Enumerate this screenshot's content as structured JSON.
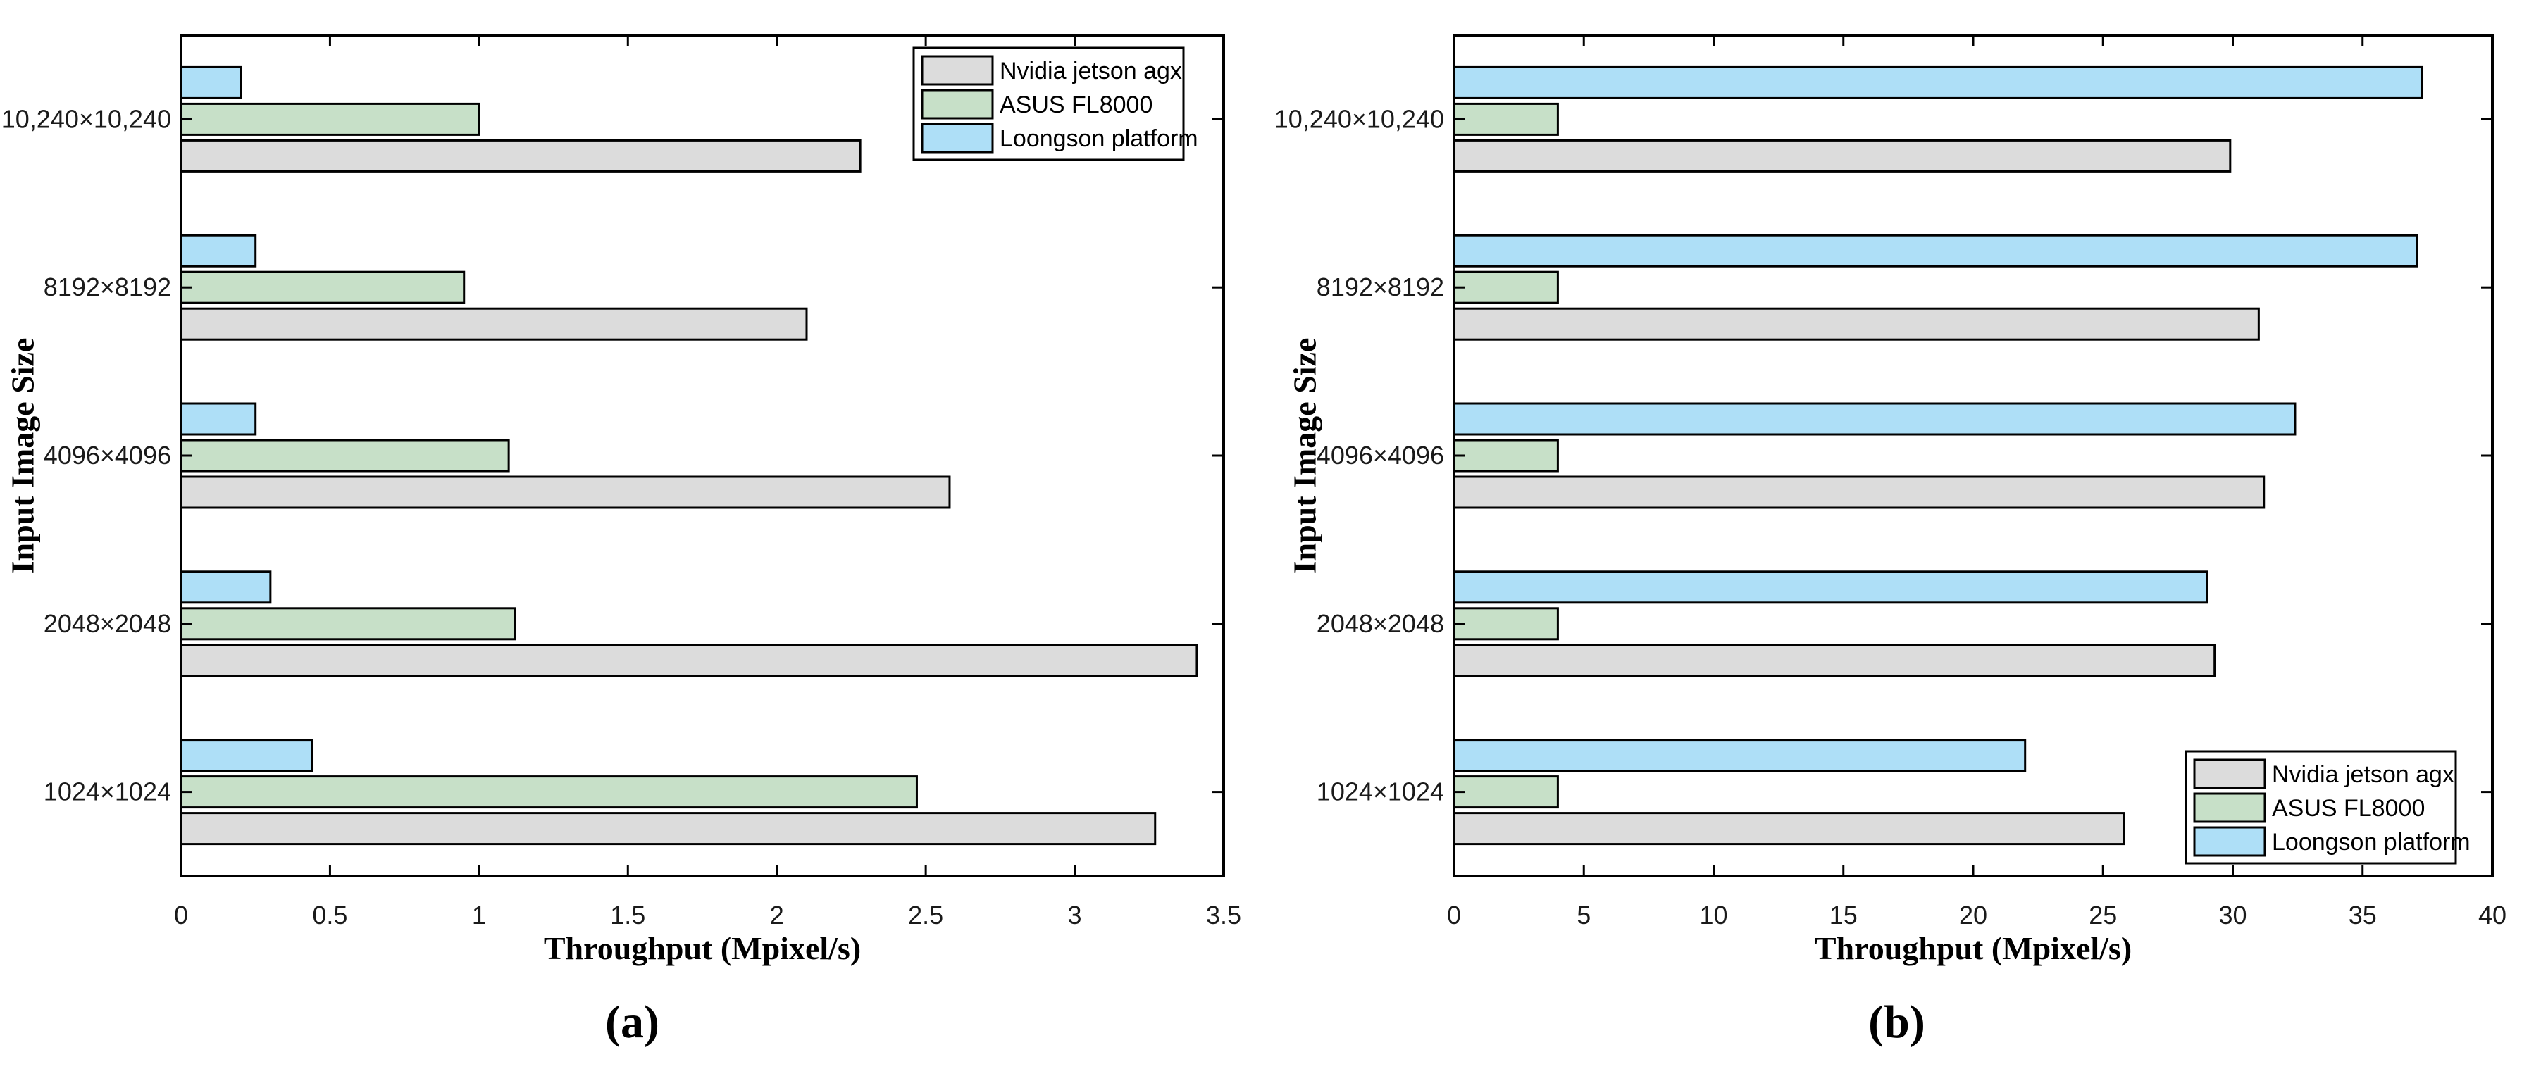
{
  "figure": {
    "background": "#ffffff",
    "axis_color": "#000000",
    "tick_label_color": "#1a1a1a"
  },
  "chart_data": [
    {
      "id": "a",
      "type": "bar",
      "orientation": "horizontal",
      "caption": "(a)",
      "xlabel": "Throughput (Mpixel/s)",
      "ylabel": "Input Image Size",
      "grid": false,
      "legend_position": "top-right",
      "categories": [
        "10,240×10,240",
        "8192×8192",
        "4096×4096",
        "2048×2048",
        "1024×1024"
      ],
      "series": [
        {
          "name": "Nvidia jetson agx",
          "color": "#dcdcdc",
          "values": [
            2.28,
            2.1,
            2.58,
            3.41,
            3.27
          ]
        },
        {
          "name": "ASUS FL8000",
          "color": "#c7e0c8",
          "values": [
            1.0,
            0.95,
            1.1,
            1.12,
            2.47
          ]
        },
        {
          "name": "Loongson platform",
          "color": "#aedff7",
          "values": [
            0.2,
            0.25,
            0.25,
            0.3,
            0.44
          ]
        }
      ],
      "xlim": [
        0,
        3.5
      ],
      "xtick_values": [
        0,
        0.5,
        1,
        1.5,
        2,
        2.5,
        3,
        3.5
      ],
      "xtick_labels": [
        "0",
        "0.5",
        "1",
        "1.5",
        "2",
        "2.5",
        "3",
        "3.5"
      ]
    },
    {
      "id": "b",
      "type": "bar",
      "orientation": "horizontal",
      "caption": "(b)",
      "xlabel": "Throughput (Mpixel/s)",
      "ylabel": "Input Image Size",
      "grid": false,
      "legend_position": "bottom-right",
      "categories": [
        "10,240×10,240",
        "8192×8192",
        "4096×4096",
        "2048×2048",
        "1024×1024"
      ],
      "series": [
        {
          "name": "Nvidia jetson agx",
          "color": "#dcdcdc",
          "values": [
            29.9,
            31.0,
            31.2,
            29.3,
            25.8
          ]
        },
        {
          "name": "ASUS FL8000",
          "color": "#c7e0c8",
          "values": [
            4.0,
            4.0,
            4.0,
            4.0,
            4.0
          ]
        },
        {
          "name": "Loongson platform",
          "color": "#aedff7",
          "values": [
            37.3,
            37.1,
            32.4,
            29.0,
            22.0
          ]
        }
      ],
      "xlim": [
        0,
        40
      ],
      "xtick_values": [
        0,
        5,
        10,
        15,
        20,
        25,
        30,
        35,
        40
      ],
      "xtick_labels": [
        "0",
        "5",
        "10",
        "15",
        "20",
        "25",
        "30",
        "35",
        "40"
      ]
    }
  ]
}
